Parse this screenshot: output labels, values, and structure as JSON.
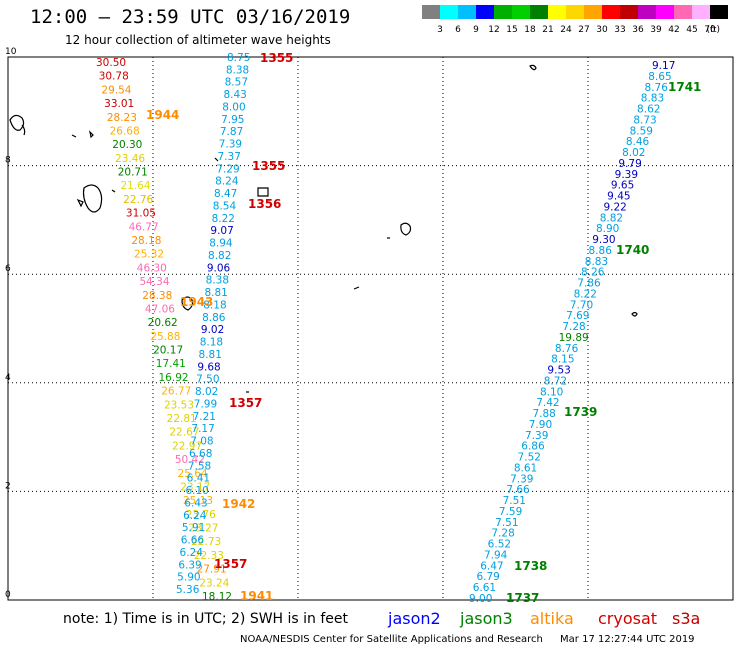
{
  "header": {
    "title": "12:00 – 23:59 UTC 03/16/2019",
    "subtitle": "12 hour collection of altimeter wave heights"
  },
  "color_scale": {
    "unit": "(ft)",
    "bins": [
      {
        "color": "#808080",
        "label": "3"
      },
      {
        "color": "#00ffff",
        "label": "6"
      },
      {
        "color": "#00bfff",
        "label": "9"
      },
      {
        "color": "#0000ff",
        "label": "12"
      },
      {
        "color": "#00b000",
        "label": "15"
      },
      {
        "color": "#00d000",
        "label": "18"
      },
      {
        "color": "#008000",
        "label": "21"
      },
      {
        "color": "#ffff00",
        "label": "24"
      },
      {
        "color": "#ffd700",
        "label": "27"
      },
      {
        "color": "#ffa500",
        "label": "30"
      },
      {
        "color": "#ff0000",
        "label": "33"
      },
      {
        "color": "#c00000",
        "label": "36"
      },
      {
        "color": "#c000c0",
        "label": "39"
      },
      {
        "color": "#ff00ff",
        "label": "42"
      },
      {
        "color": "#ff69b4",
        "label": "45"
      },
      {
        "color": "#ffb0ff",
        "label": "70"
      },
      {
        "color": "#000000",
        "label": ""
      }
    ]
  },
  "map": {
    "x_range": [
      150,
      165
    ],
    "y_range": [
      0,
      10
    ],
    "x_ticks": [
      "150",
      "153",
      "156",
      "159",
      "162",
      "165"
    ],
    "y_ticks": [
      "0",
      "2",
      "4",
      "6",
      "8",
      "10"
    ],
    "grid": "dotted"
  },
  "left_track": [
    {
      "t": "30.50",
      "c": "#d00000"
    },
    {
      "t": "30.78",
      "c": "#d00000"
    },
    {
      "t": "29.54",
      "c": "#ff8c00"
    },
    {
      "t": "33.01",
      "c": "#c00000"
    },
    {
      "t": "28.23",
      "c": "#ff8c00"
    },
    {
      "t": "26.68",
      "c": "#ffb000"
    },
    {
      "t": "20.30",
      "c": "#008000"
    },
    {
      "t": "23.46",
      "c": "#e0d000"
    },
    {
      "t": "20.71",
      "c": "#008000"
    },
    {
      "t": "21.64",
      "c": "#e0e000"
    },
    {
      "t": "22.76",
      "c": "#e0c000"
    },
    {
      "t": "31.05",
      "c": "#d00000"
    },
    {
      "t": "46.77",
      "c": "#ff69b4"
    },
    {
      "t": "28.18",
      "c": "#ff8c00"
    },
    {
      "t": "25.32",
      "c": "#ffb000"
    },
    {
      "t": "46.30",
      "c": "#ff69b4"
    },
    {
      "t": "54.34",
      "c": "#ff69b4"
    },
    {
      "t": "28.38",
      "c": "#ff8c00"
    },
    {
      "t": "47.06",
      "c": "#ff69b4"
    },
    {
      "t": "20.62",
      "c": "#008000"
    },
    {
      "t": "25.88",
      "c": "#ffb000"
    },
    {
      "t": "20.17",
      "c": "#008000"
    },
    {
      "t": "17.41",
      "c": "#00a000"
    },
    {
      "t": "16.92",
      "c": "#00a000"
    },
    {
      "t": "26.77",
      "c": "#ffb000"
    },
    {
      "t": "23.53",
      "c": "#e0d000"
    },
    {
      "t": "22.81",
      "c": "#e0d000"
    },
    {
      "t": "22.67",
      "c": "#e0d000"
    },
    {
      "t": "22.97",
      "c": "#e0d000"
    },
    {
      "t": "50.42",
      "c": "#ff69b4"
    },
    {
      "t": "25.64",
      "c": "#ffb000"
    },
    {
      "t": "23.17",
      "c": "#e0d000"
    },
    {
      "t": "25.13",
      "c": "#ffb000"
    },
    {
      "t": "23.76",
      "c": "#e0d000"
    },
    {
      "t": "23.27",
      "c": "#e0d000"
    },
    {
      "t": "22.73",
      "c": "#e0d000"
    },
    {
      "t": "22.33",
      "c": "#e0d000"
    },
    {
      "t": "27.91",
      "c": "#ff8c00"
    },
    {
      "t": "23.24",
      "c": "#e0d000"
    },
    {
      "t": "18.12",
      "c": "#008000"
    }
  ],
  "middle_track": [
    {
      "t": "8.75",
      "c": "#00a0e0"
    },
    {
      "t": "8.38",
      "c": "#00a0e0"
    },
    {
      "t": "8.57",
      "c": "#00a0e0"
    },
    {
      "t": "8.43",
      "c": "#00a0e0"
    },
    {
      "t": "8.00",
      "c": "#00a0e0"
    },
    {
      "t": "7.95",
      "c": "#00a0e0"
    },
    {
      "t": "7.87",
      "c": "#00a0e0"
    },
    {
      "t": "7.39",
      "c": "#00a0e0"
    },
    {
      "t": "7.37",
      "c": "#00a0e0"
    },
    {
      "t": "7.29",
      "c": "#00a0e0"
    },
    {
      "t": "8.24",
      "c": "#00a0e0"
    },
    {
      "t": "8.47",
      "c": "#00a0e0"
    },
    {
      "t": "8.54",
      "c": "#00a0e0"
    },
    {
      "t": "8.22",
      "c": "#00a0e0"
    },
    {
      "t": "9.07",
      "c": "#0000c0"
    },
    {
      "t": "8.94",
      "c": "#00a0e0"
    },
    {
      "t": "8.82",
      "c": "#00a0e0"
    },
    {
      "t": "9.06",
      "c": "#0000c0"
    },
    {
      "t": "8.38",
      "c": "#00a0e0"
    },
    {
      "t": "8.81",
      "c": "#00a0e0"
    },
    {
      "t": "8.18",
      "c": "#00a0e0"
    },
    {
      "t": "8.86",
      "c": "#00a0e0"
    },
    {
      "t": "9.02",
      "c": "#0000c0"
    },
    {
      "t": "8.18",
      "c": "#00a0e0"
    },
    {
      "t": "8.81",
      "c": "#00a0e0"
    },
    {
      "t": "9.68",
      "c": "#0000c0"
    },
    {
      "t": "7.50",
      "c": "#00a0e0"
    },
    {
      "t": "8.02",
      "c": "#00a0e0"
    },
    {
      "t": "7.99",
      "c": "#00a0e0"
    },
    {
      "t": "7.21",
      "c": "#00a0e0"
    },
    {
      "t": "7.17",
      "c": "#00a0e0"
    },
    {
      "t": "7.08",
      "c": "#00a0e0"
    },
    {
      "t": "6.68",
      "c": "#00a0e0"
    },
    {
      "t": "7.58",
      "c": "#00a0e0"
    },
    {
      "t": "6.41",
      "c": "#00a0e0"
    },
    {
      "t": "6.10",
      "c": "#00a0e0"
    },
    {
      "t": "6.43",
      "c": "#00a0e0"
    },
    {
      "t": "6.24",
      "c": "#00a0e0"
    },
    {
      "t": "5.91",
      "c": "#00a0e0"
    },
    {
      "t": "6.66",
      "c": "#00a0e0"
    },
    {
      "t": "6.24",
      "c": "#00a0e0"
    },
    {
      "t": "6.39",
      "c": "#00a0e0"
    },
    {
      "t": "5.90",
      "c": "#00a0e0"
    },
    {
      "t": "5.36",
      "c": "#00a0e0"
    }
  ],
  "right_track": [
    {
      "t": "9.17",
      "c": "#0000c0"
    },
    {
      "t": "8.65",
      "c": "#00a0e0"
    },
    {
      "t": "8.76",
      "c": "#00a0e0"
    },
    {
      "t": "8.83",
      "c": "#00a0e0"
    },
    {
      "t": "8.62",
      "c": "#00a0e0"
    },
    {
      "t": "8.73",
      "c": "#00a0e0"
    },
    {
      "t": "8.59",
      "c": "#00a0e0"
    },
    {
      "t": "8.46",
      "c": "#00a0e0"
    },
    {
      "t": "8.02",
      "c": "#00a0e0"
    },
    {
      "t": "9.79",
      "c": "#0000c0"
    },
    {
      "t": "9.39",
      "c": "#0000c0"
    },
    {
      "t": "9.65",
      "c": "#0000c0"
    },
    {
      "t": "9.45",
      "c": "#0000c0"
    },
    {
      "t": "9.22",
      "c": "#0000c0"
    },
    {
      "t": "8.82",
      "c": "#00a0e0"
    },
    {
      "t": "8.90",
      "c": "#00a0e0"
    },
    {
      "t": "9.30",
      "c": "#0000c0"
    },
    {
      "t": "8.86",
      "c": "#00a0e0"
    },
    {
      "t": "8.83",
      "c": "#00a0e0"
    },
    {
      "t": "8.26",
      "c": "#00a0e0"
    },
    {
      "t": "7.86",
      "c": "#00a0e0"
    },
    {
      "t": "8.22",
      "c": "#00a0e0"
    },
    {
      "t": "7.70",
      "c": "#00a0e0"
    },
    {
      "t": "7.69",
      "c": "#00a0e0"
    },
    {
      "t": "7.28",
      "c": "#00a0e0"
    },
    {
      "t": "19.89",
      "c": "#008000"
    },
    {
      "t": "8.76",
      "c": "#00a0e0"
    },
    {
      "t": "8.15",
      "c": "#00a0e0"
    },
    {
      "t": "9.53",
      "c": "#0000c0"
    },
    {
      "t": "8.72",
      "c": "#00a0e0"
    },
    {
      "t": "8.10",
      "c": "#00a0e0"
    },
    {
      "t": "7.42",
      "c": "#00a0e0"
    },
    {
      "t": "7.88",
      "c": "#00a0e0"
    },
    {
      "t": "7.90",
      "c": "#00a0e0"
    },
    {
      "t": "7.39",
      "c": "#00a0e0"
    },
    {
      "t": "6.86",
      "c": "#00a0e0"
    },
    {
      "t": "7.52",
      "c": "#00a0e0"
    },
    {
      "t": "8.61",
      "c": "#00a0e0"
    },
    {
      "t": "7.39",
      "c": "#00a0e0"
    },
    {
      "t": "7.66",
      "c": "#00a0e0"
    },
    {
      "t": "7.51",
      "c": "#00a0e0"
    },
    {
      "t": "7.59",
      "c": "#00a0e0"
    },
    {
      "t": "7.51",
      "c": "#00a0e0"
    },
    {
      "t": "7.28",
      "c": "#00a0e0"
    },
    {
      "t": "6.52",
      "c": "#00a0e0"
    },
    {
      "t": "7.94",
      "c": "#00a0e0"
    },
    {
      "t": "6.47",
      "c": "#00a0e0"
    },
    {
      "t": "6.79",
      "c": "#00a0e0"
    },
    {
      "t": "6.61",
      "c": "#00a0e0"
    },
    {
      "t": "9.00",
      "c": "#00a0e0"
    }
  ],
  "pass_times": [
    {
      "t": "1355",
      "c": "#d00000"
    },
    {
      "t": "1944",
      "c": "#ff8c00"
    },
    {
      "t": "1355",
      "c": "#d00000"
    },
    {
      "t": "1356",
      "c": "#d00000"
    },
    {
      "t": "1943",
      "c": "#ff8c00"
    },
    {
      "t": "1357",
      "c": "#d00000"
    },
    {
      "t": "1942",
      "c": "#ff8c00"
    },
    {
      "t": "1357",
      "c": "#d00000"
    },
    {
      "t": "1941",
      "c": "#ff8c00"
    },
    {
      "t": "1741",
      "c": "#008000"
    },
    {
      "t": "1740",
      "c": "#008000"
    },
    {
      "t": "1739",
      "c": "#008000"
    },
    {
      "t": "1738",
      "c": "#008000"
    },
    {
      "t": "1737",
      "c": "#008000"
    }
  ],
  "footer": {
    "note": "note: 1) Time is in UTC; 2) SWH is in feet",
    "legend": [
      {
        "label": "jason2",
        "color": "#0000ff"
      },
      {
        "label": "jason3",
        "color": "#008000"
      },
      {
        "label": "altika",
        "color": "#ff8c00"
      },
      {
        "label": "cryosat",
        "color": "#d00000"
      },
      {
        "label": "s3a",
        "color": "#c00000"
      }
    ],
    "credit": "NOAA/NESDIS Center for Satellite Applications and Research",
    "generated": "Mar 17 12:27:44 UTC 2019"
  }
}
